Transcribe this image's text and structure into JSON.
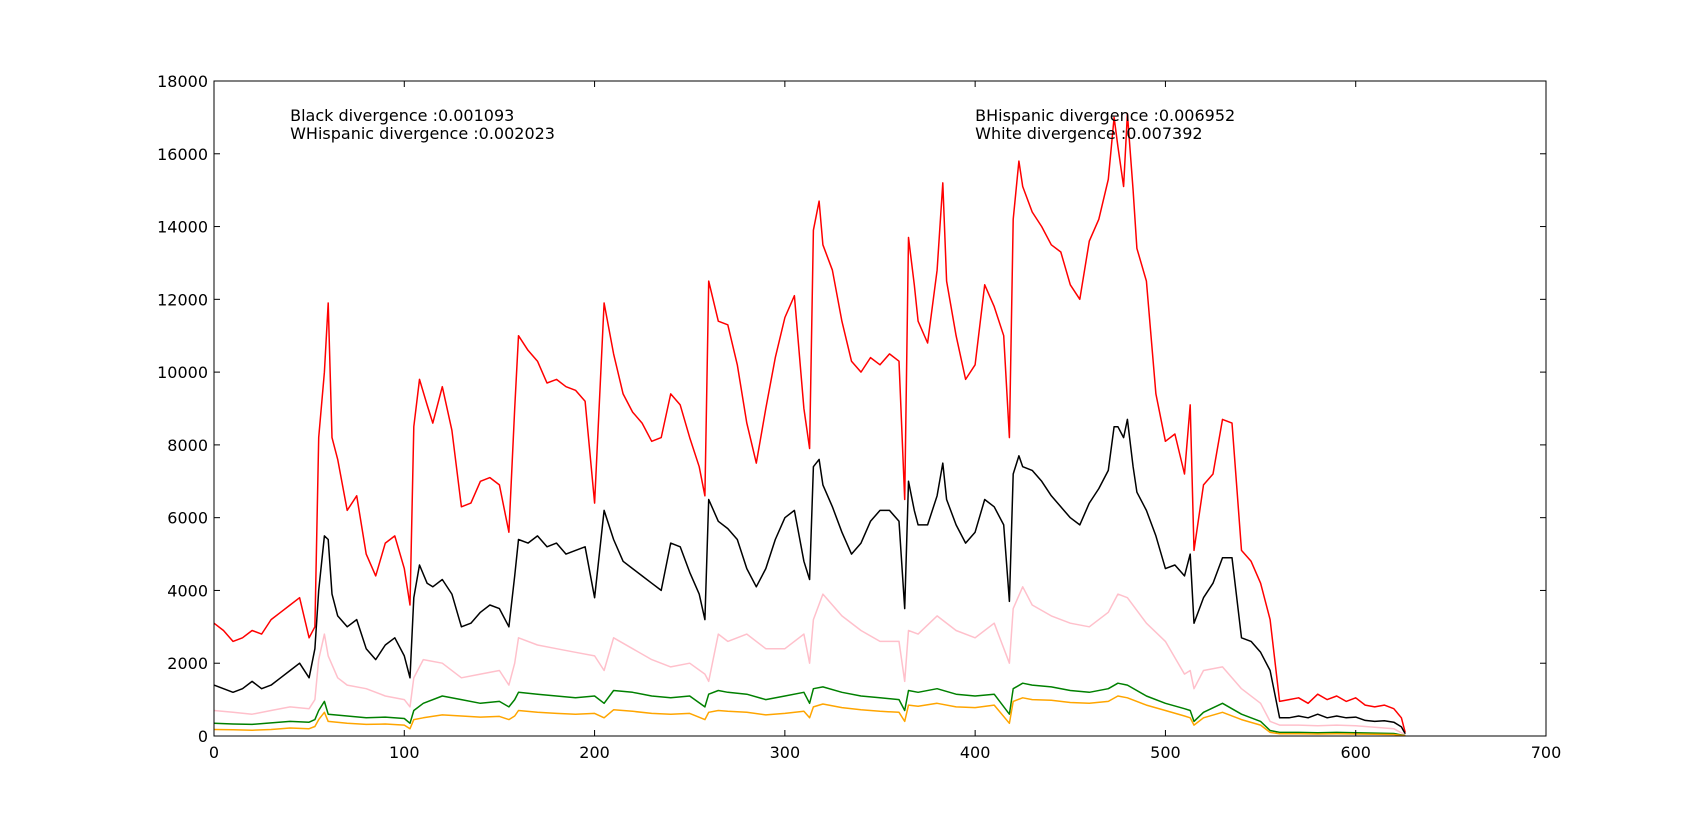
{
  "chart_data": {
    "type": "line",
    "title": "",
    "xlabel": "",
    "ylabel": "",
    "xlim": [
      0,
      700
    ],
    "ylim": [
      0,
      18000
    ],
    "x_ticks": [
      0,
      100,
      200,
      300,
      400,
      500,
      600,
      700
    ],
    "y_ticks": [
      0,
      2000,
      4000,
      6000,
      8000,
      10000,
      12000,
      14000,
      16000,
      18000
    ],
    "grid": false,
    "legend": "none",
    "annotations": [
      {
        "text": "Black divergence :0.001093",
        "x": 40,
        "y": 16900
      },
      {
        "text": "WHispanic divergence :0.002023",
        "x": 40,
        "y": 16400
      },
      {
        "text": "BHispanic divergence :0.006952",
        "x": 400,
        "y": 16900
      },
      {
        "text": "White divergence :0.007392",
        "x": 400,
        "y": 16400
      }
    ],
    "series": [
      {
        "color": "#ff0000",
        "x": [
          0,
          5,
          10,
          15,
          20,
          25,
          30,
          35,
          40,
          45,
          50,
          53,
          55,
          58,
          60,
          62,
          65,
          70,
          75,
          80,
          85,
          90,
          95,
          100,
          103,
          105,
          108,
          112,
          115,
          120,
          125,
          130,
          135,
          140,
          145,
          150,
          155,
          158,
          160,
          165,
          170,
          175,
          180,
          185,
          190,
          195,
          200,
          205,
          210,
          215,
          220,
          225,
          230,
          235,
          240,
          245,
          250,
          255,
          258,
          260,
          265,
          270,
          275,
          280,
          285,
          290,
          295,
          300,
          305,
          310,
          313,
          315,
          318,
          320,
          325,
          330,
          335,
          340,
          345,
          350,
          355,
          360,
          363,
          365,
          368,
          370,
          375,
          380,
          383,
          385,
          390,
          395,
          400,
          405,
          410,
          415,
          418,
          420,
          423,
          425,
          430,
          435,
          440,
          445,
          450,
          455,
          460,
          465,
          470,
          473,
          475,
          478,
          480,
          483,
          485,
          490,
          495,
          500,
          505,
          510,
          513,
          515,
          520,
          525,
          530,
          535,
          540,
          545,
          550,
          555,
          560,
          565,
          570,
          575,
          580,
          585,
          590,
          595,
          600,
          605,
          610,
          615,
          620,
          624,
          626
        ],
        "y": [
          3100,
          2900,
          2600,
          2700,
          2900,
          2800,
          3200,
          3400,
          3600,
          3800,
          2700,
          3000,
          8200,
          10000,
          11900,
          8200,
          7600,
          6200,
          6600,
          5000,
          4400,
          5300,
          5500,
          4600,
          3600,
          8500,
          9800,
          9100,
          8600,
          9600,
          8400,
          6300,
          6400,
          7000,
          7100,
          6900,
          5600,
          9000,
          11000,
          10600,
          10300,
          9700,
          9800,
          9600,
          9500,
          9200,
          6400,
          11900,
          10500,
          9400,
          8900,
          8600,
          8100,
          8200,
          9400,
          9100,
          8200,
          7400,
          6600,
          12500,
          11400,
          11300,
          10200,
          8600,
          7500,
          9000,
          10400,
          11500,
          12100,
          9000,
          7900,
          13900,
          14700,
          13500,
          12800,
          11400,
          10300,
          10000,
          10400,
          10200,
          10500,
          10300,
          6500,
          13700,
          12400,
          11400,
          10800,
          12800,
          15200,
          12500,
          11000,
          9800,
          10200,
          12400,
          11800,
          11000,
          8200,
          14200,
          15800,
          15100,
          14400,
          14000,
          13500,
          13300,
          12400,
          12000,
          13600,
          14200,
          15300,
          17000,
          16200,
          15100,
          17100,
          15000,
          13400,
          12500,
          9400,
          8100,
          8300,
          7200,
          9100,
          5100,
          6900,
          7200,
          8700,
          8600,
          5100,
          4800,
          4200,
          3200,
          950,
          1000,
          1050,
          900,
          1150,
          1000,
          1100,
          950,
          1050,
          850,
          800,
          850,
          750,
          500,
          100
        ]
      },
      {
        "color": "#000000",
        "x": [
          0,
          5,
          10,
          15,
          20,
          25,
          30,
          35,
          40,
          45,
          50,
          53,
          55,
          58,
          60,
          62,
          65,
          70,
          75,
          80,
          85,
          90,
          95,
          100,
          103,
          105,
          108,
          112,
          115,
          120,
          125,
          130,
          135,
          140,
          145,
          150,
          155,
          158,
          160,
          165,
          170,
          175,
          180,
          185,
          190,
          195,
          200,
          205,
          210,
          215,
          220,
          225,
          230,
          235,
          240,
          245,
          250,
          255,
          258,
          260,
          265,
          270,
          275,
          280,
          285,
          290,
          295,
          300,
          305,
          310,
          313,
          315,
          318,
          320,
          325,
          330,
          335,
          340,
          345,
          350,
          355,
          360,
          363,
          365,
          368,
          370,
          375,
          380,
          383,
          385,
          390,
          395,
          400,
          405,
          410,
          415,
          418,
          420,
          423,
          425,
          430,
          435,
          440,
          445,
          450,
          455,
          460,
          465,
          470,
          473,
          475,
          478,
          480,
          483,
          485,
          490,
          495,
          500,
          505,
          510,
          513,
          515,
          520,
          525,
          530,
          535,
          540,
          545,
          550,
          555,
          560,
          565,
          570,
          575,
          580,
          585,
          590,
          595,
          600,
          605,
          610,
          615,
          620,
          624,
          626
        ],
        "y": [
          1400,
          1300,
          1200,
          1300,
          1500,
          1300,
          1400,
          1600,
          1800,
          2000,
          1600,
          2400,
          4000,
          5500,
          5400,
          3900,
          3300,
          3000,
          3200,
          2400,
          2100,
          2500,
          2700,
          2200,
          1600,
          3800,
          4700,
          4200,
          4100,
          4300,
          3900,
          3000,
          3100,
          3400,
          3600,
          3500,
          3000,
          4400,
          5400,
          5300,
          5500,
          5200,
          5300,
          5000,
          5100,
          5200,
          3800,
          6200,
          5400,
          4800,
          4600,
          4400,
          4200,
          4000,
          5300,
          5200,
          4500,
          3900,
          3200,
          6500,
          5900,
          5700,
          5400,
          4600,
          4100,
          4600,
          5400,
          6000,
          6200,
          4800,
          4300,
          7400,
          7600,
          6900,
          6300,
          5600,
          5000,
          5300,
          5900,
          6200,
          6200,
          5900,
          3500,
          7000,
          6200,
          5800,
          5800,
          6600,
          7500,
          6500,
          5800,
          5300,
          5600,
          6500,
          6300,
          5800,
          3700,
          7200,
          7700,
          7400,
          7300,
          7000,
          6600,
          6300,
          6000,
          5800,
          6400,
          6800,
          7300,
          8500,
          8500,
          8200,
          8700,
          7400,
          6700,
          6200,
          5500,
          4600,
          4700,
          4400,
          5000,
          3100,
          3800,
          4200,
          4900,
          4900,
          2700,
          2600,
          2300,
          1800,
          500,
          500,
          550,
          500,
          600,
          500,
          550,
          500,
          520,
          430,
          400,
          420,
          380,
          250,
          60
        ]
      },
      {
        "color": "#ffc0cb",
        "x": [
          0,
          10,
          20,
          30,
          40,
          50,
          53,
          55,
          58,
          60,
          65,
          70,
          80,
          90,
          100,
          103,
          105,
          110,
          120,
          130,
          140,
          150,
          155,
          158,
          160,
          170,
          180,
          190,
          200,
          205,
          210,
          220,
          230,
          240,
          250,
          258,
          260,
          265,
          270,
          280,
          290,
          300,
          310,
          313,
          315,
          320,
          330,
          340,
          350,
          360,
          363,
          365,
          370,
          380,
          390,
          400,
          410,
          418,
          420,
          425,
          430,
          440,
          450,
          460,
          470,
          475,
          480,
          490,
          500,
          510,
          513,
          515,
          520,
          530,
          540,
          550,
          555,
          560,
          570,
          580,
          590,
          600,
          610,
          620,
          626
        ],
        "y": [
          700,
          650,
          600,
          700,
          800,
          750,
          1000,
          2100,
          2800,
          2200,
          1600,
          1400,
          1300,
          1100,
          1000,
          800,
          1600,
          2100,
          2000,
          1600,
          1700,
          1800,
          1400,
          2000,
          2700,
          2500,
          2400,
          2300,
          2200,
          1800,
          2700,
          2400,
          2100,
          1900,
          2000,
          1700,
          1500,
          2800,
          2600,
          2800,
          2400,
          2400,
          2800,
          2000,
          3200,
          3900,
          3300,
          2900,
          2600,
          2600,
          1500,
          2900,
          2800,
          3300,
          2900,
          2700,
          3100,
          2000,
          3500,
          4100,
          3600,
          3300,
          3100,
          3000,
          3400,
          3900,
          3800,
          3100,
          2600,
          1700,
          1800,
          1300,
          1800,
          1900,
          1300,
          900,
          400,
          300,
          300,
          280,
          300,
          280,
          240,
          200,
          30
        ]
      },
      {
        "color": "#008000",
        "x": [
          0,
          10,
          20,
          30,
          40,
          50,
          53,
          55,
          58,
          60,
          70,
          80,
          90,
          100,
          103,
          105,
          110,
          120,
          130,
          140,
          150,
          155,
          158,
          160,
          170,
          180,
          190,
          200,
          205,
          210,
          220,
          230,
          240,
          250,
          258,
          260,
          265,
          270,
          280,
          290,
          300,
          310,
          313,
          315,
          320,
          330,
          340,
          350,
          360,
          363,
          365,
          370,
          380,
          390,
          400,
          410,
          418,
          420,
          425,
          430,
          440,
          450,
          460,
          470,
          475,
          480,
          490,
          500,
          510,
          513,
          515,
          520,
          530,
          540,
          550,
          555,
          560,
          570,
          580,
          590,
          600,
          610,
          620,
          626
        ],
        "y": [
          350,
          330,
          320,
          360,
          400,
          380,
          450,
          700,
          950,
          600,
          550,
          500,
          520,
          480,
          350,
          700,
          900,
          1100,
          1000,
          900,
          950,
          800,
          1000,
          1200,
          1150,
          1100,
          1050,
          1100,
          900,
          1250,
          1200,
          1100,
          1050,
          1100,
          800,
          1150,
          1250,
          1200,
          1150,
          1000,
          1100,
          1200,
          900,
          1300,
          1350,
          1200,
          1100,
          1050,
          1000,
          700,
          1250,
          1200,
          1300,
          1150,
          1100,
          1150,
          600,
          1300,
          1450,
          1400,
          1350,
          1250,
          1200,
          1300,
          1450,
          1400,
          1100,
          900,
          750,
          700,
          400,
          650,
          900,
          600,
          400,
          150,
          100,
          100,
          90,
          100,
          90,
          80,
          70,
          10
        ]
      },
      {
        "color": "#ffa500",
        "x": [
          0,
          10,
          20,
          30,
          40,
          50,
          53,
          55,
          58,
          60,
          70,
          80,
          90,
          100,
          103,
          105,
          110,
          120,
          130,
          140,
          150,
          155,
          158,
          160,
          170,
          180,
          190,
          200,
          205,
          210,
          220,
          230,
          240,
          250,
          258,
          260,
          265,
          270,
          280,
          290,
          300,
          310,
          313,
          315,
          320,
          330,
          340,
          350,
          360,
          363,
          365,
          370,
          380,
          390,
          400,
          410,
          418,
          420,
          425,
          430,
          440,
          450,
          460,
          470,
          475,
          480,
          490,
          500,
          510,
          513,
          515,
          520,
          530,
          540,
          550,
          555,
          560,
          570,
          580,
          590,
          600,
          610,
          620,
          626
        ],
        "y": [
          180,
          170,
          160,
          180,
          220,
          200,
          260,
          450,
          650,
          400,
          350,
          320,
          330,
          300,
          200,
          450,
          500,
          580,
          550,
          520,
          540,
          450,
          550,
          700,
          650,
          620,
          600,
          620,
          500,
          720,
          680,
          620,
          600,
          620,
          450,
          650,
          700,
          680,
          650,
          580,
          620,
          680,
          500,
          800,
          880,
          780,
          720,
          680,
          650,
          400,
          850,
          820,
          900,
          800,
          780,
          850,
          350,
          950,
          1050,
          1000,
          980,
          920,
          900,
          950,
          1100,
          1050,
          850,
          700,
          550,
          500,
          300,
          500,
          650,
          450,
          300,
          100,
          60,
          60,
          55,
          60,
          55,
          50,
          40,
          5
        ]
      }
    ]
  }
}
